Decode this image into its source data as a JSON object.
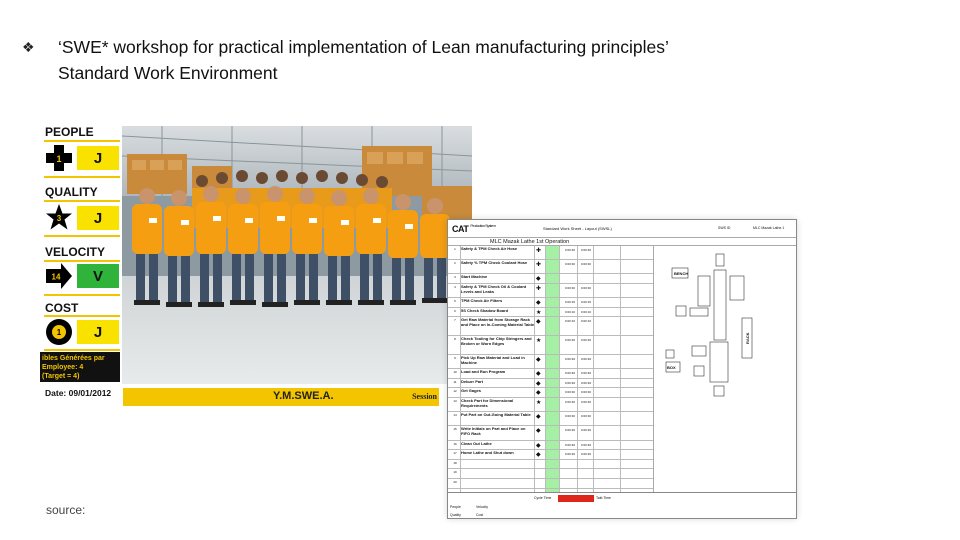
{
  "slide": {
    "bullet": "❖",
    "title_line1": "‘SWE* workshop for practical implementation of Lean manufacturing principles’",
    "title_line2": "Standard Work Environment",
    "source_label": "source:"
  },
  "kpis": [
    {
      "label": "PEOPLE",
      "value": "J",
      "badge": "1",
      "shape": "cross-icon",
      "status_color": "#f9e200"
    },
    {
      "label": "QUALITY",
      "value": "J",
      "badge": "3",
      "shape": "star-icon",
      "status_color": "#f9e200"
    },
    {
      "label": "VELOCITY",
      "value": "V",
      "badge": "14",
      "shape": "arrow-icon",
      "status_color": "#2fb33a"
    },
    {
      "label": "COST",
      "value": "J",
      "badge": "1",
      "shape": "circle-icon",
      "status_color": "#f9e200"
    }
  ],
  "note": {
    "line1": "ibles Générées par",
    "line2": "Employee: 4",
    "line3": "(Target = 4)"
  },
  "date": "Date: 09/01/2012",
  "banner": {
    "title": "Y.M.SWE.A.",
    "session": "Session"
  },
  "sheet": {
    "logo": "CAT",
    "logo_sub": "Production System",
    "title": "Standard Work Sheet - Layout (SWSL)",
    "id_label": "SWS ID",
    "machine": "MLC Mazak Lathe 1",
    "operation": "MLC Mazak Lathe 1st Operation",
    "rows": [
      {
        "num": "1",
        "desc": "Safety & TPM Check Air Hose",
        "sym": "✚",
        "v1": "0:00:30",
        "v2": "0:00:30"
      },
      {
        "num": "2",
        "desc": "Safety % TPM Check Coolant Hose",
        "sym": "✚",
        "v1": "0:00:30",
        "v2": "0:00:30"
      },
      {
        "num": "3",
        "desc": "Start Machine",
        "sym": "◆",
        "v1": "",
        "v2": ""
      },
      {
        "num": "4",
        "desc": "Safety & TPM Check Oil & Coolant Levels and Leaks",
        "sym": "✚",
        "v1": "0:00:30",
        "v2": "0:00:30"
      },
      {
        "num": "5",
        "desc": "TPM Check Air Filters",
        "sym": "◆",
        "v1": "0:00:15",
        "v2": "0:00:15"
      },
      {
        "num": "6",
        "desc": "5S Check Shadow Board",
        "sym": "★",
        "v1": "0:00:10",
        "v2": "0:00:10"
      },
      {
        "num": "7",
        "desc": "Get Raw Material from Storage Rack and Place on In-Coming Material Table",
        "sym": "◆",
        "v1": "0:00:10",
        "v2": "0:00:10"
      },
      {
        "num": "8",
        "desc": "Check Tooling for Chip Stringers and Broken or Worn Edges",
        "sym": "★",
        "v1": "0:00:30",
        "v2": "0:00:30"
      },
      {
        "num": "9",
        "desc": "Pick Up Raw Material and Load in Machine",
        "sym": "◆",
        "v1": "0:00:30",
        "v2": "0:00:30"
      },
      {
        "num": "10",
        "desc": "Load and Run Program",
        "sym": "◆",
        "v1": "0:00:30",
        "v2": "0:00:30"
      },
      {
        "num": "11",
        "desc": "Deburr Part",
        "sym": "◆",
        "v1": "0:00:30",
        "v2": "0:00:30"
      },
      {
        "num": "12",
        "desc": "Get Gages",
        "sym": "◆",
        "v1": "0:00:30",
        "v2": "0:00:30"
      },
      {
        "num": "13",
        "desc": "Check Part for Dimensional Requirements",
        "sym": "★",
        "v1": "0:00:30",
        "v2": "0:00:30"
      },
      {
        "num": "14",
        "desc": "Put Part on Out-Going Material Table",
        "sym": "◆",
        "v1": "0:00:30",
        "v2": "0:00:30"
      },
      {
        "num": "15",
        "desc": "Write Initials on Part and Place on FIFO Rack",
        "sym": "◆",
        "v1": "0:00:30",
        "v2": "0:00:30"
      },
      {
        "num": "16",
        "desc": "Clean Out Lathe",
        "sym": "◆",
        "v1": "0:00:30",
        "v2": "0:00:30"
      },
      {
        "num": "17",
        "desc": "Home Lathe and Shut down",
        "sym": "◆",
        "v1": "0:00:30",
        "v2": "0:00:30"
      },
      {
        "num": "18",
        "desc": "",
        "sym": "",
        "v1": "",
        "v2": ""
      },
      {
        "num": "19",
        "desc": "",
        "sym": "",
        "v1": "",
        "v2": ""
      },
      {
        "num": "20",
        "desc": "",
        "sym": "",
        "v1": "",
        "v2": ""
      }
    ],
    "footer_cycle": "Cycle Time",
    "footer_takt": "Takt Time",
    "footer_people": "People",
    "footer_velocity": "Velocity",
    "footer_quality": "Quality",
    "footer_cost": "Cost",
    "layout_labels": {
      "bench": "BENCH",
      "rack": "RACK",
      "box": "BOX"
    }
  }
}
